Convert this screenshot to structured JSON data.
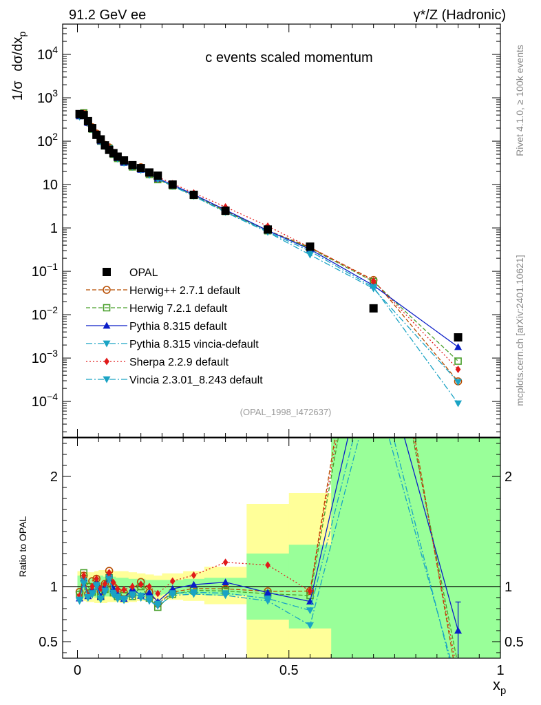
{
  "header": {
    "left": "91.2 GeV ee",
    "right": "γ*/Z (Hadronic)",
    "title": "c events scaled momentum",
    "side_version": "Rivet 4.1.0, ≥ 100k events",
    "side_site": "mcplots.cern.ch [arXiv:2401.10621]",
    "analysis_id": "(OPAL_1998_I472637)"
  },
  "chart_data": [
    {
      "type": "line",
      "scale": "log",
      "title": "c events scaled momentum",
      "ylabel_prefix": "1/σ",
      "ylabel_main": "dσ/dx",
      "ylabel_sub": "p",
      "ylim": [
        1.5e-05,
        50000
      ],
      "ytick_labels": [
        {
          "base": "10",
          "exp": "4",
          "value": 10000
        },
        {
          "base": "10",
          "exp": "3",
          "value": 1000
        },
        {
          "base": "10",
          "exp": "2",
          "value": 100
        },
        {
          "base": "10",
          "exp": "",
          "value": 10
        },
        {
          "base": "1",
          "exp": "",
          "value": 1
        },
        {
          "base": "10",
          "exp": "−1",
          "value": 0.1
        },
        {
          "base": "10",
          "exp": "−2",
          "value": 0.01
        },
        {
          "base": "10",
          "exp": "−3",
          "value": 0.001
        },
        {
          "base": "10",
          "exp": "−4",
          "value": 0.0001
        }
      ],
      "x": [
        0.005,
        0.015,
        0.025,
        0.035,
        0.045,
        0.055,
        0.065,
        0.075,
        0.085,
        0.095,
        0.11,
        0.13,
        0.15,
        0.17,
        0.19,
        0.225,
        0.275,
        0.35,
        0.45,
        0.55,
        0.7,
        0.9
      ],
      "series": [
        {
          "name": "OPAL",
          "marker": "square",
          "color": "#000000",
          "line": "none",
          "values": [
            420,
            400,
            290,
            200,
            140,
            110,
            80,
            63,
            53,
            44,
            36,
            28,
            24,
            19,
            16,
            10,
            5.8,
            2.5,
            0.92,
            0.37,
            0.014,
            0.003
          ]
        },
        {
          "name": "Herwig++ 2.7.1 default",
          "marker": "circle-open",
          "color": "#b84d00",
          "line": "dashed",
          "values": [
            400,
            440,
            270,
            210,
            150,
            105,
            82,
            72,
            53,
            42,
            34,
            26,
            25,
            18,
            13.5,
            9.5,
            5.7,
            2.45,
            0.88,
            0.355,
            0.063,
            0.00029
          ]
        },
        {
          "name": "Herwig 7.2.1 default",
          "marker": "square-open",
          "color": "#4aa02c",
          "line": "dashed",
          "values": [
            390,
            450,
            290,
            190,
            140,
            100,
            78,
            68,
            50,
            40,
            33,
            25.5,
            24,
            17,
            13,
            9.3,
            5.6,
            2.4,
            0.86,
            0.34,
            0.058,
            0.00085
          ]
        },
        {
          "name": "Pythia 8.315 default",
          "marker": "triangle-up",
          "color": "#0a1ec8",
          "line": "solid",
          "values": [
            375,
            430,
            265,
            195,
            145,
            100,
            80,
            70,
            52,
            41,
            32,
            27.5,
            22,
            18,
            13.8,
            9.8,
            5.9,
            2.6,
            0.87,
            0.32,
            0.047,
            0.0018
          ]
        },
        {
          "name": "Pythia 8.315 vincia-default",
          "marker": "triangle-down",
          "color": "#1aa3c4",
          "line": "dashdot",
          "values": [
            365,
            420,
            260,
            185,
            140,
            98,
            76,
            68,
            50,
            40,
            32,
            26,
            22,
            17,
            13.5,
            9.4,
            5.5,
            2.35,
            0.82,
            0.29,
            0.043,
            9e-05
          ]
        },
        {
          "name": "Sherpa 2.2.9 default",
          "marker": "diamond",
          "color": "#e01a1a",
          "line": "dotted",
          "values": [
            385,
            440,
            265,
            200,
            150,
            108,
            82,
            71,
            55,
            43,
            35,
            28,
            24.5,
            19,
            15,
            10.5,
            6.4,
            3.05,
            1.1,
            0.355,
            0.06,
            0.00055
          ]
        },
        {
          "name": "Vincia 2.3.01_8.243 default",
          "marker": "triangle-down",
          "color": "#1aa3c4",
          "line": "dashdot",
          "values": [
            370,
            410,
            262,
            188,
            142,
            97,
            77,
            67,
            49,
            39,
            31.5,
            25.5,
            21.5,
            16.5,
            13.2,
            9.2,
            5.4,
            2.3,
            0.8,
            0.24,
            0.04,
            0.00028
          ]
        }
      ]
    },
    {
      "type": "line",
      "scale": "linear",
      "ylabel": "Ratio to OPAL",
      "xlabel_main": "x",
      "xlabel_sub": "p",
      "xlim": [
        -0.035,
        1.0
      ],
      "ylim": [
        0.35,
        2.35
      ],
      "xtick_labels": [
        {
          "label": "0",
          "value": 0
        },
        {
          "label": "0.5",
          "value": 0.5
        },
        {
          "label": "1",
          "value": 1
        }
      ],
      "ytick_labels": [
        {
          "label": "0.5",
          "value": 0.5
        },
        {
          "label": "1",
          "value": 1
        },
        {
          "label": "2",
          "value": 2
        }
      ],
      "bands": [
        {
          "x": [
            0,
            0.01
          ],
          "green": [
            0.9,
            1.1
          ],
          "yellow": [
            0.86,
            1.14
          ]
        },
        {
          "x": [
            0.01,
            0.02
          ],
          "green": [
            0.9,
            1.09
          ],
          "yellow": [
            0.87,
            1.13
          ]
        },
        {
          "x": [
            0.02,
            0.03
          ],
          "green": [
            0.92,
            1.07
          ],
          "yellow": [
            0.86,
            1.13
          ]
        },
        {
          "x": [
            0.03,
            0.04
          ],
          "green": [
            0.92,
            1.08
          ],
          "yellow": [
            0.86,
            1.13
          ]
        },
        {
          "x": [
            0.04,
            0.05
          ],
          "green": [
            0.9,
            1.08
          ],
          "yellow": [
            0.85,
            1.14
          ]
        },
        {
          "x": [
            0.05,
            0.06
          ],
          "green": [
            0.9,
            1.1
          ],
          "yellow": [
            0.85,
            1.15
          ]
        },
        {
          "x": [
            0.06,
            0.07
          ],
          "green": [
            0.91,
            1.09
          ],
          "yellow": [
            0.85,
            1.15
          ]
        },
        {
          "x": [
            0.07,
            0.08
          ],
          "green": [
            0.91,
            1.09
          ],
          "yellow": [
            0.86,
            1.15
          ]
        },
        {
          "x": [
            0.08,
            0.09
          ],
          "green": [
            0.91,
            1.09
          ],
          "yellow": [
            0.86,
            1.14
          ]
        },
        {
          "x": [
            0.09,
            0.1
          ],
          "green": [
            0.92,
            1.08
          ],
          "yellow": [
            0.86,
            1.14
          ]
        },
        {
          "x": [
            0.1,
            0.12
          ],
          "green": [
            0.9,
            1.08
          ],
          "yellow": [
            0.85,
            1.14
          ]
        },
        {
          "x": [
            0.12,
            0.14
          ],
          "green": [
            0.91,
            1.07
          ],
          "yellow": [
            0.86,
            1.13
          ]
        },
        {
          "x": [
            0.14,
            0.16
          ],
          "green": [
            0.91,
            1.07
          ],
          "yellow": [
            0.87,
            1.12
          ]
        },
        {
          "x": [
            0.16,
            0.18
          ],
          "green": [
            0.92,
            1.06
          ],
          "yellow": [
            0.88,
            1.11
          ]
        },
        {
          "x": [
            0.18,
            0.2
          ],
          "green": [
            0.92,
            1.06
          ],
          "yellow": [
            0.88,
            1.1
          ]
        },
        {
          "x": [
            0.2,
            0.25
          ],
          "green": [
            0.93,
            1.06
          ],
          "yellow": [
            0.88,
            1.12
          ]
        },
        {
          "x": [
            0.25,
            0.3
          ],
          "green": [
            0.93,
            1.07
          ],
          "yellow": [
            0.87,
            1.14
          ]
        },
        {
          "x": [
            0.3,
            0.4
          ],
          "green": [
            0.92,
            1.08
          ],
          "yellow": [
            0.84,
            1.18
          ]
        },
        {
          "x": [
            0.4,
            0.5
          ],
          "green": [
            0.7,
            1.3
          ],
          "yellow": [
            0.35,
            1.75
          ]
        },
        {
          "x": [
            0.5,
            0.6
          ],
          "green": [
            0.62,
            1.38
          ],
          "yellow": [
            0.35,
            1.85
          ]
        },
        {
          "x": [
            0.6,
            0.8
          ],
          "green": [
            0.35,
            2.35
          ],
          "yellow": [
            0.35,
            2.35
          ]
        },
        {
          "x": [
            0.8,
            1.0
          ],
          "green": [
            0.35,
            2.35
          ],
          "yellow": [
            0.35,
            2.35
          ]
        }
      ],
      "opal_point": {
        "x": 0.9,
        "y": 0.6,
        "err_low": 0.35,
        "err_high": 0.86
      }
    }
  ]
}
